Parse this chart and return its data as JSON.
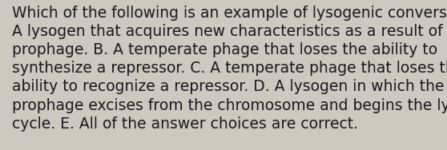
{
  "lines": [
    "Which of the following is an example of lysogenic conversion? A.",
    "A lysogen that acquires new characteristics as a result of the",
    "prophage. B. A temperate phage that loses the ability to",
    "synthesize a repressor. C. A temperate phage that loses the",
    "ability to recognize a repressor. D. A lysogen in which the",
    "prophage excises from the chromosome and begins the lytic",
    "cycle. E. All of the answer choices are correct."
  ],
  "background_color": "#cdc8c0",
  "text_color": "#1a1a1a",
  "font_size": 13.5,
  "font_family": "DejaVu Sans",
  "fig_width": 5.58,
  "fig_height": 1.88,
  "dpi": 100
}
